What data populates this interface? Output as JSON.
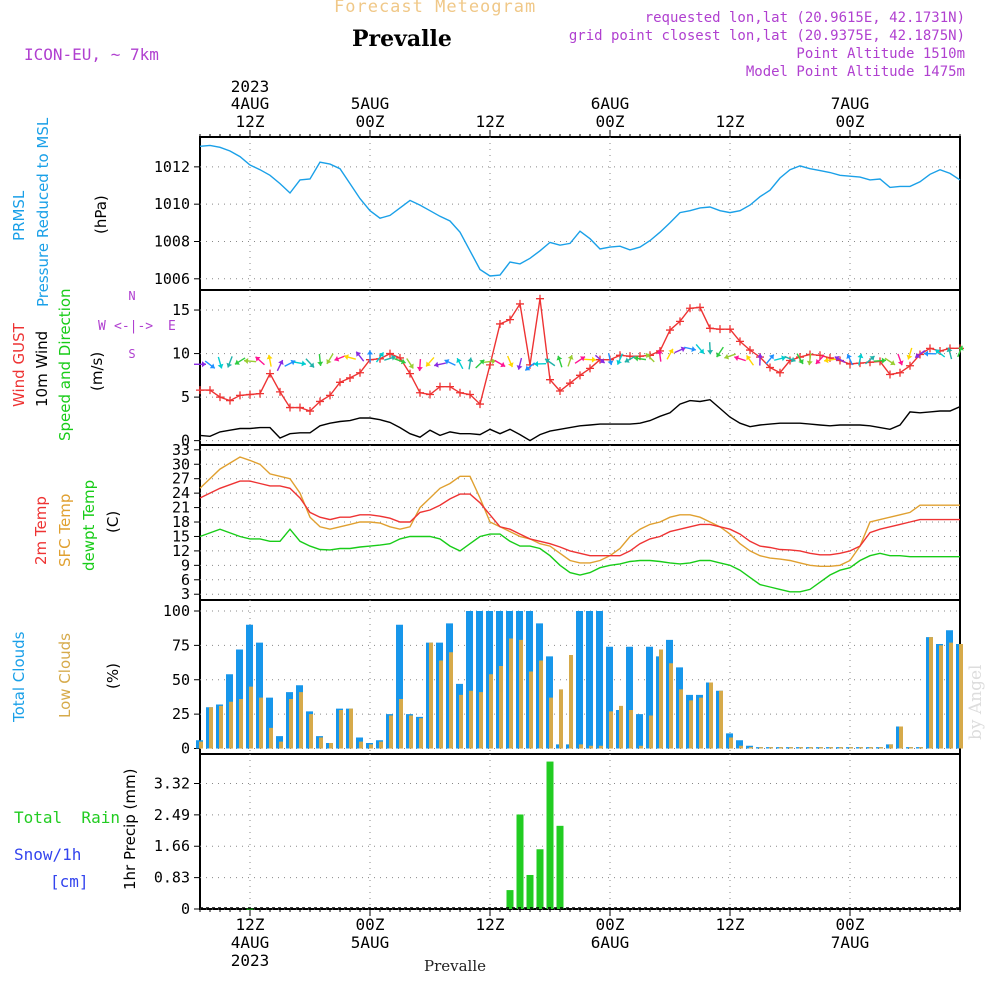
{
  "header": {
    "title": "Forecast Meteogram",
    "location": "Prevalle",
    "model": "ICON-EU, ~ 7km",
    "requested": "requested lon,lat (20.9615E, 42.1731N)",
    "gridpoint": "grid point closest lon,lat (20.9375E, 42.1875N)",
    "point_alt": "Point Altitude 1510m",
    "model_alt": "Model Point Altitude 1475m"
  },
  "time_axis": {
    "top_year": "2023",
    "top_labels": [
      {
        "day": "4AUG",
        "hour": "12Z",
        "h": 12
      },
      {
        "day": "5AUG",
        "hour": "00Z",
        "h": 24
      },
      {
        "day": "",
        "hour": "12Z",
        "h": 36
      },
      {
        "day": "6AUG",
        "hour": "00Z",
        "h": 48
      },
      {
        "day": "",
        "hour": "12Z",
        "h": 60
      },
      {
        "day": "7AUG",
        "hour": "00Z",
        "h": 72
      }
    ],
    "bottom_labels": [
      {
        "hour": "12Z",
        "day": "4AUG",
        "year": "2023",
        "h": 12
      },
      {
        "hour": "00Z",
        "day": "5AUG",
        "year": "",
        "h": 24
      },
      {
        "hour": "12Z",
        "day": "",
        "year": "",
        "h": 36
      },
      {
        "hour": "00Z",
        "day": "6AUG",
        "year": "",
        "h": 48
      },
      {
        "hour": "12Z",
        "day": "",
        "year": "",
        "h": 60
      },
      {
        "hour": "00Z",
        "day": "7AUG",
        "year": "",
        "h": 72
      }
    ],
    "bottom_station": "Prevalle",
    "x_range_hours": [
      7,
      83
    ]
  },
  "labels": {
    "prmsl": "PRMSL",
    "prmsl_long": "Pressure Reduced to MSL",
    "prmsl_unit": "(hPa)",
    "gust": "Wind GUST",
    "wind10": "10m Wind",
    "wind_sd": "Speed and Direction",
    "wind_unit": "(m/s)",
    "compass_w": "W",
    "compass_e": "E",
    "compass_n": "N",
    "compass_s": "S",
    "temp2m": "2m Temp",
    "sfc": "SFC Temp",
    "dewpt": "dewpt Temp",
    "temp_unit": "(C)",
    "total_clouds": "Total Clouds",
    "low_clouds": "Low Clouds",
    "cloud_unit": "(%)",
    "rain_total": "Total  Rain",
    "snow": "Snow/1h",
    "snow_unit": "[cm]",
    "precip_axis": "1hr Precip (mm)",
    "watermark": "by Angel"
  },
  "colors": {
    "pressure": "#1aa0e8",
    "gust": "#ee3333",
    "wind10": "#000000",
    "temp2m": "#ee3333",
    "sfc": "#e0a030",
    "dewpt": "#18cc18",
    "total_cloud": "#1796ea",
    "low_cloud": "#d6aa4a",
    "rain": "#22cc22",
    "snow": "#3344ee",
    "purple": "#b040d0",
    "title_orange": "#f0c888"
  },
  "chart_data": [
    {
      "type": "line",
      "name": "pressure",
      "ylabel": "(hPa)",
      "ylim": [
        1005.4,
        1013.6
      ],
      "yticks": [
        1006,
        1008,
        1010,
        1012
      ],
      "x": [
        7,
        8,
        9,
        10,
        11,
        12,
        13,
        14,
        15,
        16,
        17,
        18,
        19,
        20,
        21,
        22,
        23,
        24,
        25,
        26,
        27,
        28,
        29,
        30,
        31,
        32,
        33,
        34,
        35,
        36,
        37,
        38,
        39,
        40,
        41,
        42,
        43,
        44,
        45,
        46,
        47,
        48,
        49,
        50,
        51,
        52,
        53,
        54,
        55,
        56,
        57,
        58,
        59,
        60,
        61,
        62,
        63,
        64,
        65,
        66,
        67,
        68,
        69,
        70,
        71,
        72,
        73,
        74,
        75,
        76,
        77,
        78,
        79,
        80,
        81,
        82,
        83
      ],
      "series": [
        {
          "name": "PRMSL",
          "values": [
            1013.1,
            1013.15,
            1013.05,
            1012.85,
            1012.55,
            1012.1,
            1011.85,
            1011.55,
            1011.1,
            1010.6,
            1011.3,
            1011.35,
            1012.25,
            1012.15,
            1011.9,
            1011.1,
            1010.3,
            1009.65,
            1009.25,
            1009.4,
            1009.8,
            1010.2,
            1009.95,
            1009.65,
            1009.35,
            1009.1,
            1008.5,
            1007.5,
            1006.5,
            1006.15,
            1006.2,
            1006.9,
            1006.8,
            1007.1,
            1007.5,
            1007.95,
            1007.8,
            1007.9,
            1008.55,
            1008.15,
            1007.6,
            1007.7,
            1007.75,
            1007.55,
            1007.7,
            1008.05,
            1008.5,
            1009.0,
            1009.55,
            1009.65,
            1009.8,
            1009.85,
            1009.65,
            1009.55,
            1009.65,
            1009.95,
            1010.4,
            1010.75,
            1011.4,
            1011.85,
            1012.05,
            1011.9,
            1011.8,
            1011.7,
            1011.55,
            1011.5,
            1011.45,
            1011.3,
            1011.35,
            1010.9,
            1010.95,
            1010.95,
            1011.2,
            1011.6,
            1011.85,
            1011.65,
            1011.3
          ]
        }
      ]
    },
    {
      "type": "line",
      "name": "wind",
      "ylabel": "(m/s)",
      "ylim": [
        -0.5,
        17.3
      ],
      "yticks": [
        0,
        5,
        10,
        15
      ],
      "x": [
        7,
        8,
        9,
        10,
        11,
        12,
        13,
        14,
        15,
        16,
        17,
        18,
        19,
        20,
        21,
        22,
        23,
        24,
        25,
        26,
        27,
        28,
        29,
        30,
        31,
        32,
        33,
        34,
        35,
        36,
        37,
        38,
        39,
        40,
        41,
        42,
        43,
        44,
        45,
        46,
        47,
        48,
        49,
        50,
        51,
        52,
        53,
        54,
        55,
        56,
        57,
        58,
        59,
        60,
        61,
        62,
        63,
        64,
        65,
        66,
        67,
        68,
        69,
        70,
        71,
        72,
        73,
        74,
        75,
        76,
        77,
        78,
        79,
        80,
        81,
        82,
        83
      ],
      "series": [
        {
          "name": "Wind GUST",
          "values": [
            5.8,
            5.8,
            5.0,
            4.6,
            5.2,
            5.3,
            5.4,
            7.7,
            5.6,
            3.8,
            3.8,
            3.4,
            4.5,
            5.2,
            6.7,
            7.2,
            7.8,
            9.3,
            9.4,
            10.0,
            9.5,
            7.7,
            5.5,
            5.3,
            6.2,
            6.2,
            5.5,
            5.3,
            4.2,
            8.7,
            13.4,
            13.9,
            15.7,
            8.7,
            16.3,
            7.0,
            5.7,
            6.6,
            7.5,
            8.3,
            9.3,
            9.3,
            9.8,
            9.7,
            9.7,
            9.8,
            10.3,
            12.7,
            13.7,
            15.2,
            15.3,
            12.9,
            12.8,
            12.8,
            11.4,
            10.4,
            9.6,
            8.4,
            7.8,
            9.2,
            9.6,
            9.9,
            9.8,
            9.5,
            9.2,
            8.8,
            8.9,
            9.0,
            9.1,
            7.6,
            7.8,
            8.6,
            9.9,
            10.6,
            10.3,
            10.6,
            10.6
          ]
        },
        {
          "name": "10m Wind",
          "values": [
            0.6,
            0.5,
            1.0,
            1.2,
            1.4,
            1.4,
            1.5,
            1.5,
            0.3,
            0.8,
            0.9,
            0.9,
            1.7,
            2.0,
            2.2,
            2.3,
            2.6,
            2.6,
            2.4,
            2.1,
            1.5,
            0.8,
            0.4,
            1.2,
            0.6,
            1.0,
            0.8,
            0.8,
            0.7,
            1.3,
            0.8,
            1.3,
            0.7,
            0.0,
            0.7,
            1.1,
            1.3,
            1.5,
            1.7,
            1.8,
            1.9,
            1.9,
            1.9,
            1.9,
            2.0,
            2.3,
            2.8,
            3.2,
            4.2,
            4.6,
            4.5,
            4.7,
            3.7,
            2.7,
            2.0,
            1.6,
            1.8,
            1.9,
            2.0,
            2.0,
            2.0,
            1.9,
            1.8,
            1.7,
            1.8,
            1.8,
            1.8,
            1.7,
            1.5,
            1.3,
            1.8,
            3.3,
            3.2,
            3.3,
            3.4,
            3.4,
            3.9
          ]
        }
      ]
    },
    {
      "type": "line",
      "name": "temperature",
      "ylabel": "(C)",
      "ylim": [
        1.8,
        34.0
      ],
      "yticks": [
        3,
        6,
        9,
        12,
        15,
        18,
        21,
        24,
        27,
        30,
        33
      ],
      "x": [
        7,
        9,
        11,
        12,
        13,
        14,
        15,
        16,
        17,
        18,
        19,
        20,
        21,
        22,
        23,
        24,
        25,
        26,
        27,
        28,
        29,
        30,
        31,
        32,
        33,
        34,
        35,
        36,
        37,
        38,
        39,
        40,
        41,
        42,
        43,
        44,
        45,
        46,
        47,
        48,
        49,
        50,
        51,
        52,
        53,
        54,
        55,
        56,
        57,
        58,
        59,
        60,
        61,
        62,
        63,
        64,
        65,
        66,
        67,
        68,
        69,
        70,
        71,
        72,
        73,
        74,
        75,
        76,
        77,
        78,
        79,
        80,
        81,
        82,
        83
      ],
      "series": [
        {
          "name": "2m Temp",
          "values": [
            23,
            25,
            26.5,
            26.5,
            26,
            25.5,
            25.5,
            25,
            23,
            20,
            19,
            18.5,
            19,
            19,
            19.5,
            19.5,
            19.2,
            18.8,
            18,
            18,
            20,
            20.5,
            21.5,
            22.8,
            23.8,
            23.8,
            22,
            19.5,
            17,
            16.5,
            15.5,
            14.5,
            14,
            13.5,
            12.8,
            12,
            11.5,
            11,
            11,
            11,
            11,
            12,
            13.5,
            14.5,
            15,
            16,
            16.5,
            17,
            17.5,
            17.5,
            17,
            16.5,
            15.5,
            14,
            13,
            12.7,
            12.3,
            12.2,
            12,
            11.5,
            11.2,
            11.2,
            11.5,
            12,
            13,
            15.8,
            16.5,
            17,
            17.5,
            18,
            18.5,
            18.5,
            18.5,
            18.5,
            18.5
          ]
        },
        {
          "name": "SFC Temp",
          "values": [
            25,
            29,
            31.5,
            30.8,
            30,
            28,
            27.5,
            27,
            24,
            19,
            17,
            16.5,
            17,
            17.5,
            18,
            18,
            17.8,
            17,
            16.5,
            17,
            21,
            23,
            25,
            26,
            27.5,
            27.5,
            23,
            18,
            17,
            16,
            15,
            14.5,
            13.5,
            13,
            11.5,
            10,
            9.5,
            9.5,
            10,
            11,
            12.5,
            15,
            16.5,
            17.5,
            18,
            19,
            19.5,
            19.5,
            19,
            18,
            17,
            15.5,
            13.5,
            12,
            11,
            10.5,
            10.3,
            10,
            9.5,
            9,
            8.8,
            8.8,
            9,
            10,
            13,
            18,
            18.5,
            19,
            19.5,
            20,
            21.5,
            21.5,
            21.5,
            21.5,
            21.5
          ]
        },
        {
          "name": "dewpt Temp",
          "values": [
            15,
            16.5,
            15,
            14.5,
            14.5,
            14,
            14,
            16.5,
            14,
            13,
            12.3,
            12.2,
            12.5,
            12.5,
            12.8,
            13,
            13.2,
            13.5,
            14.5,
            15,
            15,
            15,
            14.5,
            13,
            12,
            13.5,
            15,
            15.5,
            15.5,
            14,
            13,
            13,
            12.5,
            11,
            9,
            7.5,
            7,
            7.5,
            8.5,
            9,
            9.3,
            9.8,
            10,
            10,
            9.8,
            9.5,
            9.3,
            9.5,
            10,
            10,
            9.5,
            9,
            8,
            6.5,
            5,
            4.5,
            4,
            3.5,
            3.5,
            4,
            5.5,
            7,
            8,
            8.5,
            10,
            11,
            11.5,
            11,
            11,
            10.8,
            10.8,
            10.8,
            10.8,
            10.8,
            10.8
          ]
        }
      ]
    },
    {
      "type": "bar",
      "name": "clouds",
      "ylabel": "(%)",
      "ylim": [
        -4,
        108
      ],
      "yticks": [
        0,
        25,
        50,
        75,
        100
      ],
      "x": [
        7,
        8,
        9,
        10,
        11,
        12,
        13,
        14,
        15,
        16,
        17,
        18,
        19,
        20,
        21,
        22,
        23,
        24,
        25,
        26,
        27,
        28,
        29,
        30,
        31,
        32,
        33,
        34,
        35,
        36,
        37,
        38,
        39,
        40,
        41,
        42,
        43,
        44,
        45,
        46,
        47,
        48,
        49,
        50,
        51,
        52,
        53,
        54,
        55,
        56,
        57,
        58,
        59,
        60,
        61,
        62,
        63,
        64,
        65,
        66,
        67,
        68,
        69,
        70,
        71,
        72,
        73,
        74,
        75,
        76,
        77,
        78,
        79,
        80,
        81,
        82,
        83
      ],
      "series": [
        {
          "name": "Total Clouds",
          "values": [
            6,
            30,
            32,
            54,
            72,
            90,
            77,
            37,
            9,
            41,
            46,
            27,
            9,
            4,
            29,
            29,
            8,
            4,
            6,
            25,
            90,
            25,
            23,
            77,
            77,
            91,
            47,
            100,
            100,
            100,
            100,
            100,
            100,
            100,
            91,
            67,
            3,
            3,
            100,
            100,
            100,
            74,
            28,
            74,
            25,
            74,
            67,
            79,
            59,
            39,
            39,
            48,
            42,
            11,
            6,
            2,
            1,
            1,
            1,
            1,
            1,
            1,
            1,
            1,
            1,
            1,
            1,
            1,
            1,
            3,
            16,
            1,
            1,
            81,
            76,
            86,
            76
          ]
        },
        {
          "name": "Low Clouds",
          "values": [
            5,
            30,
            31,
            34,
            36,
            45,
            37,
            15,
            5,
            36,
            41,
            25,
            8,
            4,
            28,
            29,
            5,
            3,
            5,
            24,
            36,
            24,
            22,
            77,
            64,
            70,
            39,
            42,
            41,
            54,
            60,
            80,
            79,
            56,
            64,
            37,
            43,
            68,
            3,
            2,
            2,
            27,
            31,
            28,
            2,
            24,
            72,
            62,
            43,
            35,
            37,
            48,
            42,
            8,
            2,
            1,
            1,
            1,
            1,
            1,
            1,
            1,
            1,
            1,
            1,
            1,
            1,
            1,
            1,
            3,
            16,
            1,
            1,
            81,
            75,
            77,
            76
          ]
        }
      ]
    },
    {
      "type": "bar",
      "name": "precip",
      "ylabel": "1hr Precip (mm)",
      "ylim": [
        0,
        4.1
      ],
      "yticks": [
        0,
        0.83,
        1.66,
        2.49,
        3.32
      ],
      "x": [
        12,
        38,
        39,
        40,
        41,
        42,
        43
      ],
      "series": [
        {
          "name": "Total Rain",
          "values": [
            0.01,
            0.5,
            2.5,
            0.9,
            1.58,
            3.9,
            2.2
          ]
        },
        {
          "name": "Snow/1h",
          "values": [
            0,
            0,
            0,
            0,
            0,
            0,
            0
          ]
        }
      ]
    }
  ]
}
